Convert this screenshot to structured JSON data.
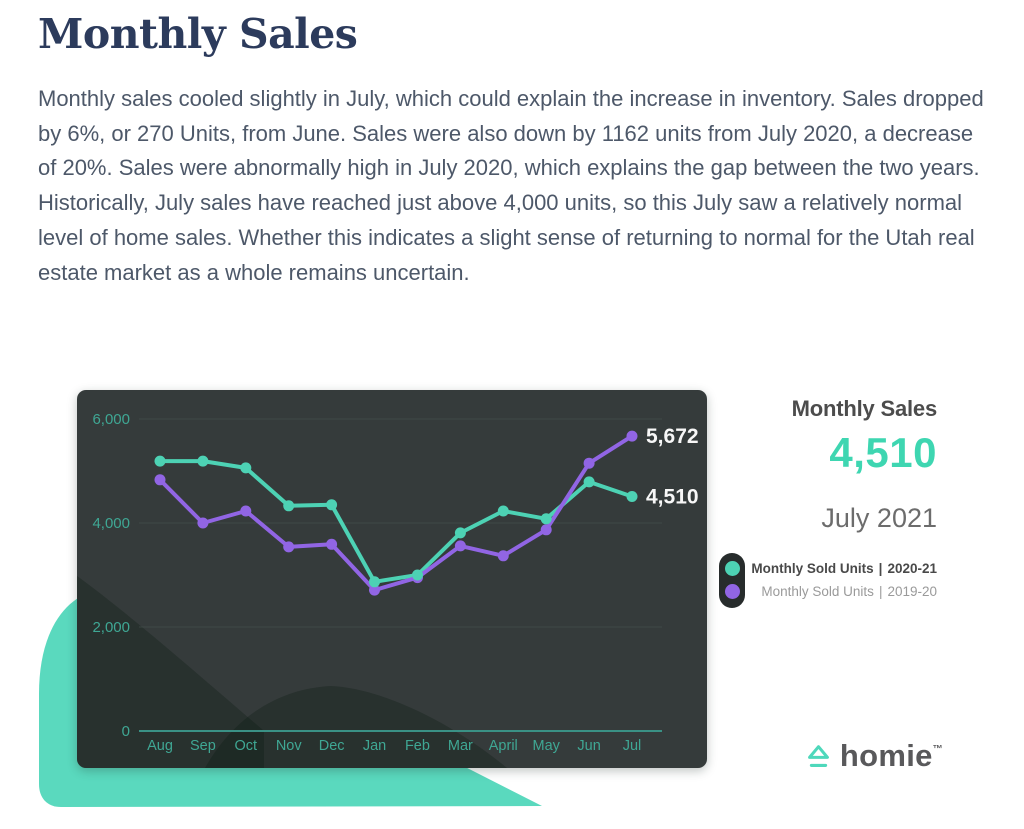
{
  "page": {
    "title": "Monthly Sales",
    "paragraph": "Monthly sales cooled slightly in July, which could explain the increase in inventory. Sales dropped by 6%, or 270 Units, from June. Sales were also down by 1162 units from July 2020, a decrease of 20%. Sales were abnormally high in July 2020, which explains the gap between the two years. Historically, July sales have reached just above 4,000 units, so this July saw a relatively normal level of home sales. Whether this indicates a slight sense of returning to normal for the Utah real estate market as a whole remains uncertain."
  },
  "chart_data": {
    "type": "line",
    "title": "Monthly Sales",
    "categories": [
      "Aug",
      "Sep",
      "Oct",
      "Nov",
      "Dec",
      "Jan",
      "Feb",
      "Mar",
      "April",
      "May",
      "Jun",
      "Jul"
    ],
    "series": [
      {
        "id": "2020-21",
        "name": "Monthly Sold Units | 2020-21",
        "color": "#4dd2b4",
        "values": [
          5190,
          5190,
          5060,
          4330,
          4350,
          2870,
          3000,
          3810,
          4230,
          4080,
          4790,
          4510
        ],
        "end_label": "4,510"
      },
      {
        "id": "2019-20",
        "name": "Monthly Sold Units | 2019-20",
        "color": "#9165e4",
        "values": [
          4830,
          4000,
          4230,
          3540,
          3590,
          2710,
          2950,
          3560,
          3370,
          3870,
          5150,
          5672
        ],
        "end_label": "5,672"
      }
    ],
    "xlabel": "",
    "ylabel": "",
    "ylim": [
      0,
      6000
    ],
    "yticks": [
      6000,
      4000,
      2000,
      0
    ],
    "ytick_labels": [
      "6,000",
      "4,000",
      "2,000",
      "0"
    ],
    "grid": true,
    "legend_position": "right",
    "colors": {
      "gridline": "#4a5751",
      "zero_line": "#3a9185",
      "axis_label": "#3fa794",
      "end_label": "#f7f7f7",
      "background": "#353b3b"
    }
  },
  "panel": {
    "title": "Monthly Sales",
    "value": "4,510",
    "period": "July 2021",
    "legend": [
      {
        "label": "Monthly Sold Units",
        "divider": "|",
        "year": "2020-21"
      },
      {
        "label": "Monthly Sold Units",
        "divider": "|",
        "year": "2019-20"
      }
    ],
    "brand": {
      "name": "homie",
      "tm": "™"
    }
  },
  "colors": {
    "accent": "#3ed6b1",
    "shape_teal": "#5ad9be",
    "card_background": "#353b3b",
    "title_navy": "#2c3b5c",
    "body_text": "#4d5869"
  }
}
